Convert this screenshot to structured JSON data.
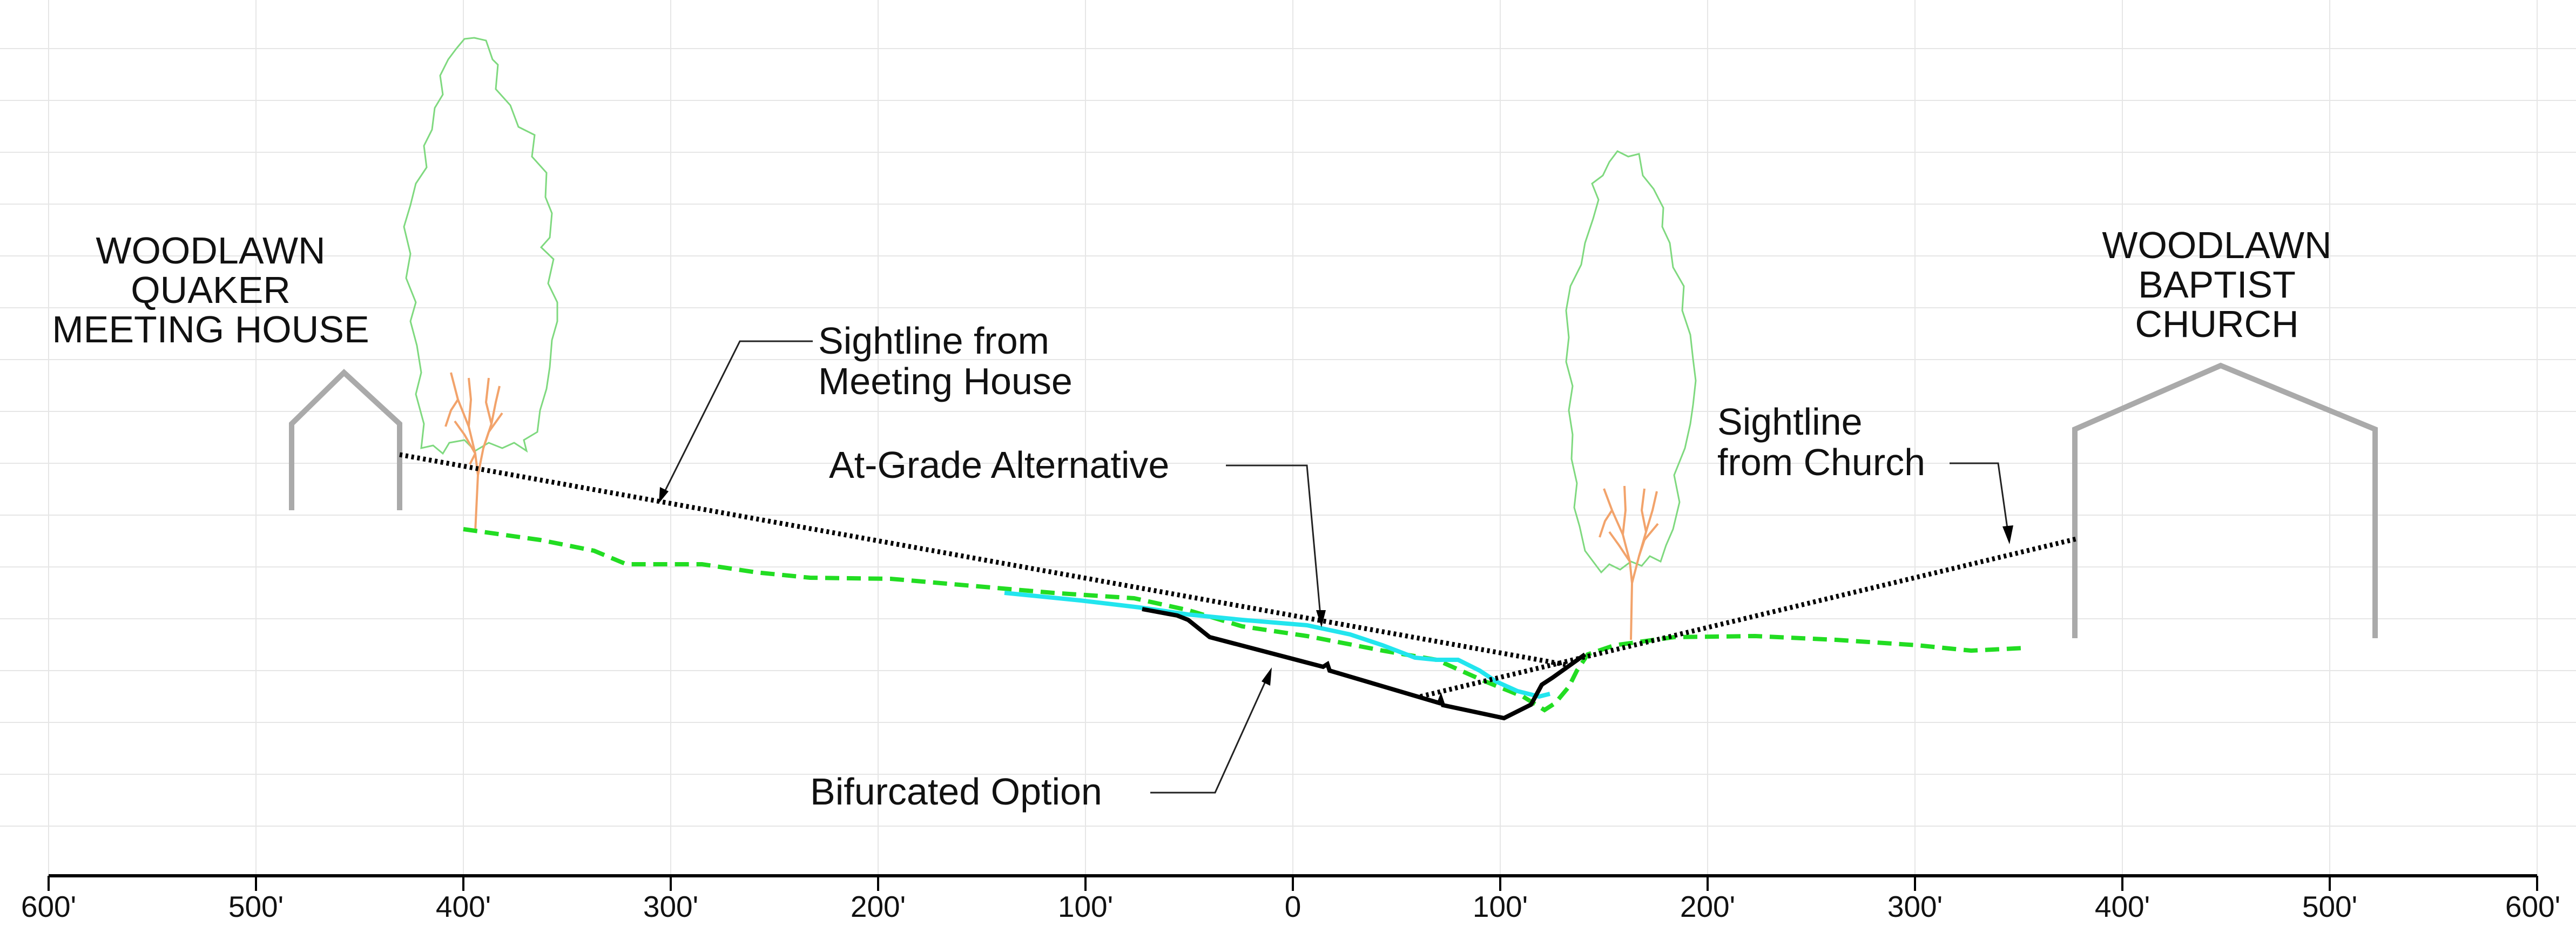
{
  "buildings": {
    "quaker": {
      "lines": [
        "WOODLAWN",
        "QUAKER",
        "MEETING HOUSE"
      ]
    },
    "baptist": {
      "lines": [
        "WOODLAWN",
        "BAPTIST",
        "CHURCH"
      ]
    }
  },
  "labels": {
    "sightline_meeting": [
      "Sightline from",
      "Meeting House"
    ],
    "at_grade": "At-Grade Alternative",
    "sightline_church": [
      "Sightline",
      "from Church"
    ],
    "bifurcated": "Bifurcated Option"
  },
  "axis": {
    "ticks": [
      "600'",
      "500'",
      "400'",
      "300'",
      "200'",
      "100'",
      "0",
      "100'",
      "200'",
      "300'",
      "400'",
      "500'",
      "600'"
    ]
  },
  "colors": {
    "grid": "#e6e6e6",
    "building": "#aaaaaa",
    "tree_canopy": "#7fd97f",
    "tree_trunk": "#f2a36b",
    "existing_grade": "#22dd22",
    "at_grade": "#22e5ee",
    "bifurcated": "#000000",
    "sightline": "#000000"
  }
}
